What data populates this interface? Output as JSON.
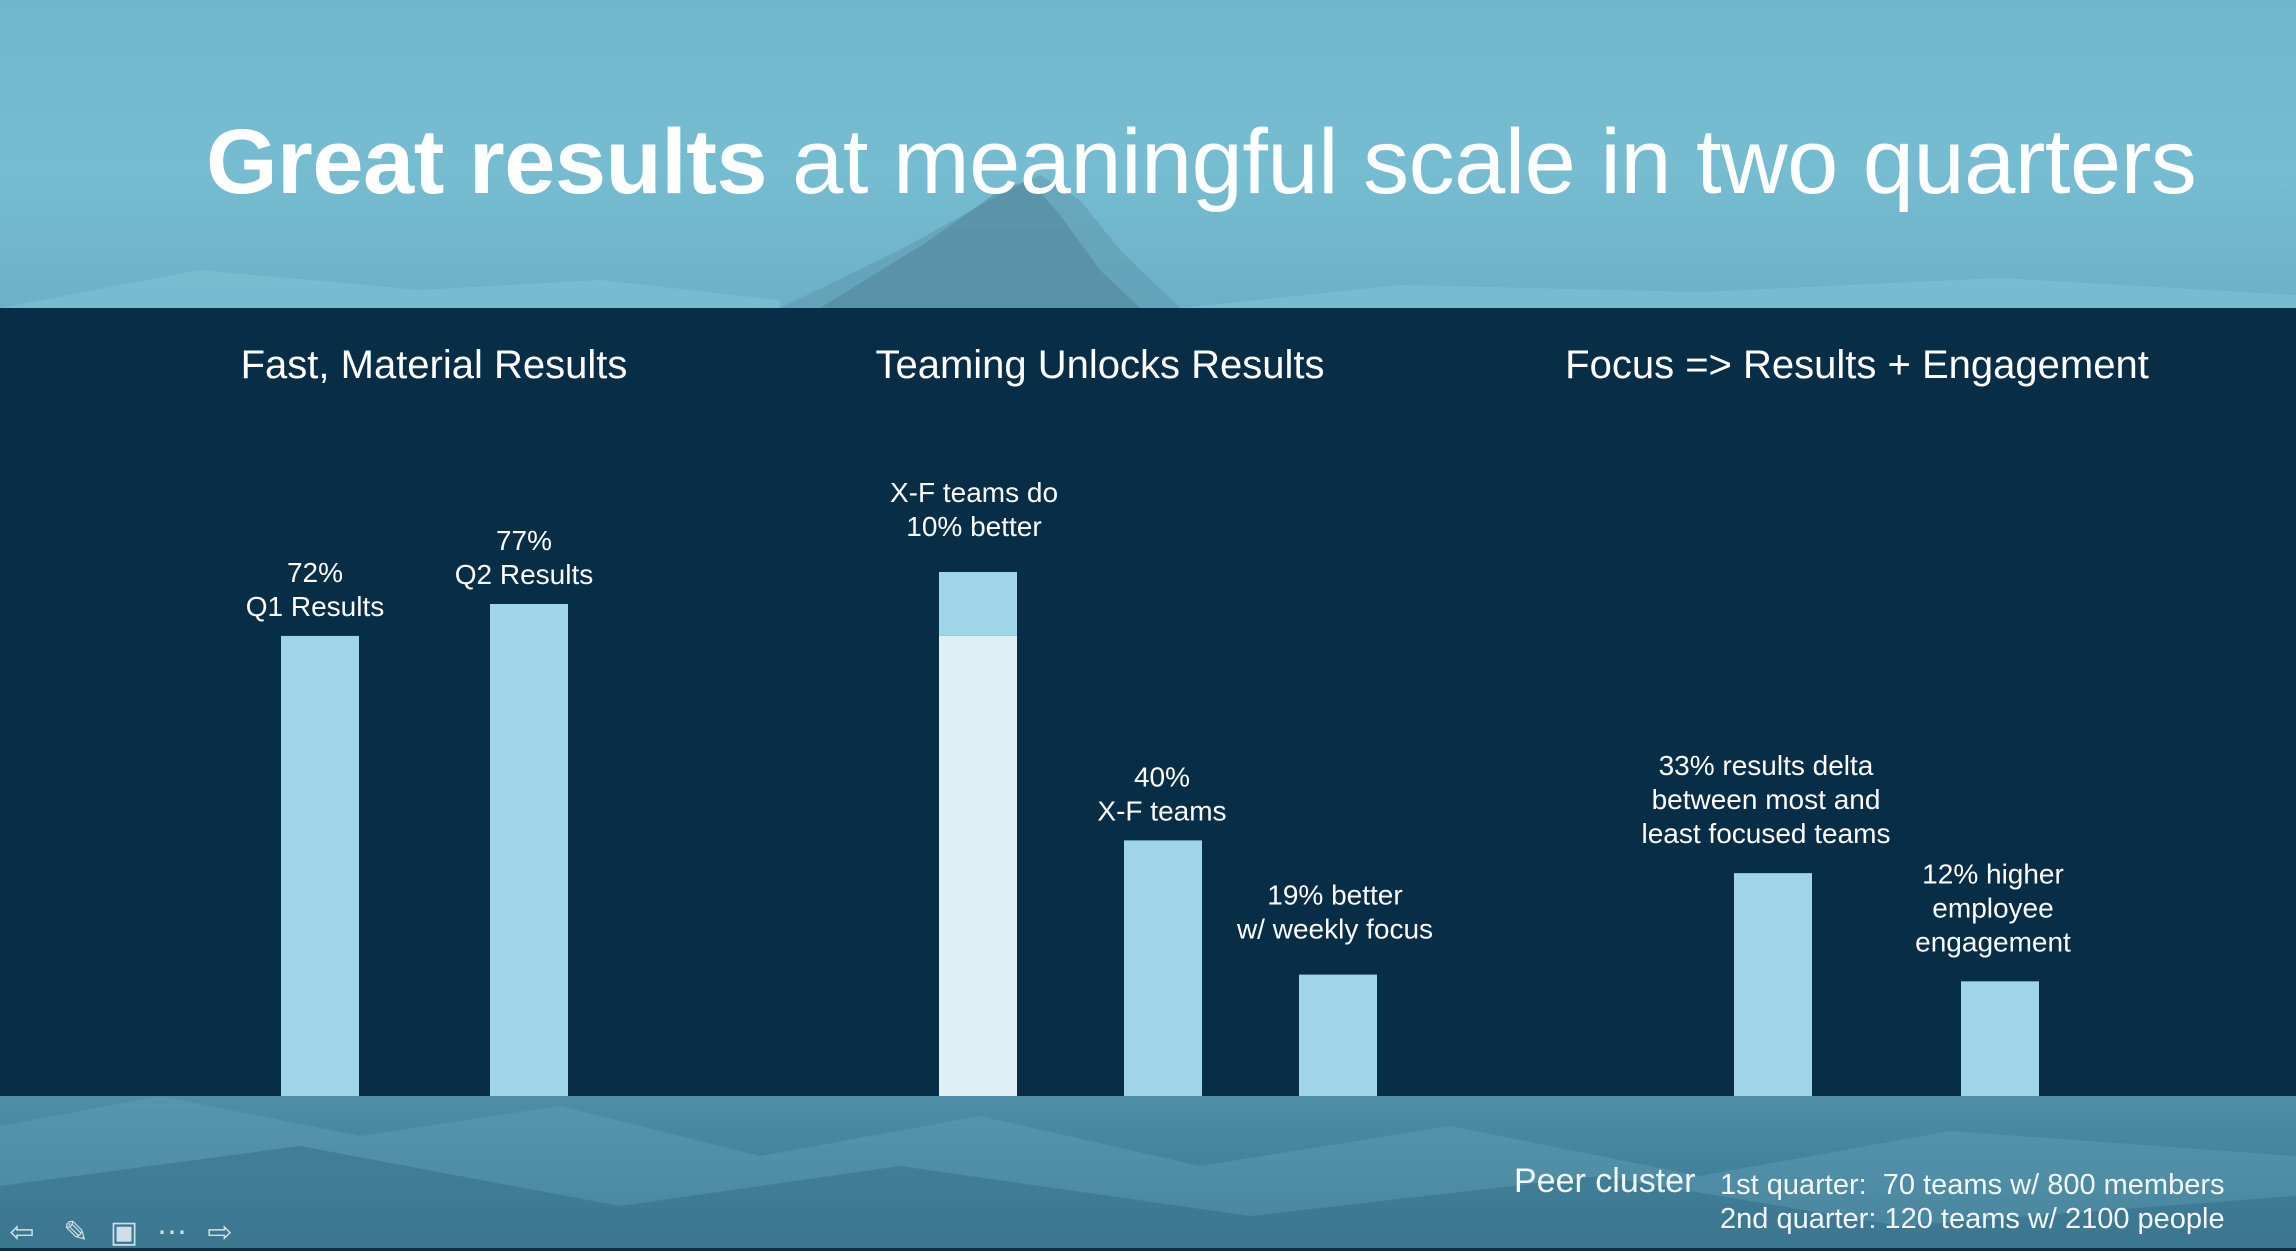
{
  "title": {
    "bold": "Great results",
    "rest": " at meaningful scale in two quarters"
  },
  "colors": {
    "panel": "#072d47",
    "bar": "#9fd5e6",
    "bar_light": "#dfeff6",
    "text": "#ffffff"
  },
  "chart_data": [
    {
      "type": "bar",
      "title": "Fast, Material Results",
      "categories": [
        "Q1 Results",
        "Q2 Results"
      ],
      "values": [
        72,
        77
      ],
      "labels": [
        [
          "72%",
          "Q1 Results"
        ],
        [
          "77%",
          "Q2 Results"
        ]
      ],
      "unit": "%"
    },
    {
      "type": "bar",
      "title": "Teaming Unlocks Results",
      "stacked_bar": {
        "base": 72,
        "increment": 10,
        "label": [
          "X-F teams do",
          "10% better"
        ]
      },
      "categories": [
        "X-F teams",
        "weekly focus"
      ],
      "values": [
        40,
        19
      ],
      "labels": [
        [
          "40%",
          "X-F teams"
        ],
        [
          "19% better",
          "w/ weekly focus"
        ]
      ],
      "unit": "%"
    },
    {
      "type": "bar",
      "title": "Focus => Results + Engagement",
      "categories": [
        "results delta",
        "employee engagement"
      ],
      "values": [
        33,
        12
      ],
      "labels": [
        [
          "33% results delta",
          "between most and",
          "least focused teams"
        ],
        [
          "12% higher",
          "employee",
          "engagement"
        ]
      ],
      "unit": "%"
    }
  ],
  "footer": {
    "peer_label": "Peer cluster",
    "lines": [
      "1st quarter:  70 teams w/ 800 members",
      "2nd quarter: 120 teams w/ 2100 people"
    ]
  },
  "nav": {
    "icons": [
      "back-arrow-icon",
      "pen-icon",
      "slides-icon",
      "more-icon",
      "forward-arrow-icon"
    ],
    "glyphs": [
      "⇦",
      "✎",
      "▣",
      "⋯",
      "⇨"
    ]
  }
}
